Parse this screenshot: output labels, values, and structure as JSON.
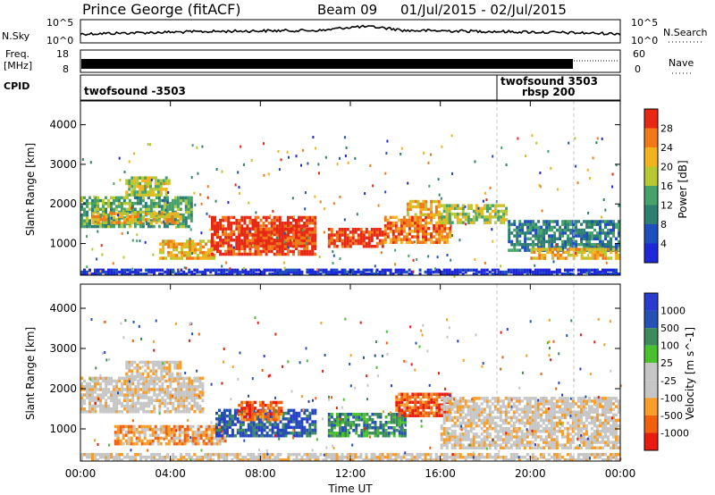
{
  "header": {
    "title": "Prince George (fitACF)",
    "beam": "Beam 09",
    "date_range": "01/Jul/2015 - 02/Jul/2015"
  },
  "left_labels": {
    "nsky": "N.Sky",
    "nsky_top": "10^5",
    "nsky_bottom": "10^0",
    "freq_line1": "Freq.",
    "freq_line2": "[MHz]",
    "freq_top": "18",
    "freq_bottom": "8",
    "cpid": "CPID"
  },
  "right_labels": {
    "nsearch_top": "10^5",
    "nsearch_bottom": "10^0",
    "nsearch": "N.Search",
    "nave_top": "60",
    "nave_bottom": "0",
    "nave": "Nave"
  },
  "cpid_labels": [
    "twofsound -3503",
    "twofsound 3503",
    "rbsp 200"
  ],
  "colors": {
    "power": [
      "#1e28d8",
      "#1f4fbf",
      "#2e7f72",
      "#47a26a",
      "#b6c832",
      "#f3b31f",
      "#f07a18",
      "#e62814"
    ],
    "velocity": [
      "#e91c12",
      "#f0600e",
      "#f79d2a",
      "#c6c6c6",
      "#c6c6c6",
      "#4bc02e",
      "#3d8a5c",
      "#2451b3",
      "#2a3cd0"
    ],
    "axis": "#000000",
    "dashed": "#c8c8c8"
  },
  "chart_data": [
    {
      "type": "line",
      "title": "N.Sky / N.Search",
      "x": [
        "00:00",
        "04:00",
        "08:00",
        "12:00",
        "16:00",
        "20:00",
        "00:00"
      ],
      "series": [
        {
          "name": "N.Sky",
          "values": [
            0.55,
            0.6,
            0.58,
            0.72,
            0.55,
            0.5,
            0.6
          ]
        }
      ]
    },
    {
      "type": "bar",
      "title": "Freq. / Nave",
      "x": [
        "00:00",
        "22:00"
      ],
      "series": [
        {
          "name": "Freq.",
          "values": [
            18,
            8
          ]
        }
      ]
    },
    {
      "type": "heatmap",
      "panel": "power",
      "ylabel": "Slant Range [km]",
      "yticks": [
        "1000",
        "2000",
        "3000",
        "4000"
      ],
      "ylim": [
        200,
        4600
      ],
      "xticks": [
        "00:00",
        "04:00",
        "08:00",
        "12:00",
        "16:00",
        "20:00",
        "00:00"
      ],
      "colorbar_label": "Power [dB]",
      "colorbar_ticks": [
        "4",
        "8",
        "12",
        "16",
        "20",
        "24",
        "28"
      ],
      "bands": [
        {
          "t0": 0.0,
          "t1": 5.0,
          "r0": 1400,
          "r1": 2200,
          "level": 3
        },
        {
          "t0": 0.5,
          "t1": 4.5,
          "r0": 1500,
          "r1": 1800,
          "level": 5
        },
        {
          "t0": 2.0,
          "t1": 4.0,
          "r0": 2200,
          "r1": 2700,
          "level": 4
        },
        {
          "t0": 3.5,
          "t1": 6.0,
          "r0": 600,
          "r1": 1100,
          "level": 5
        },
        {
          "t0": 5.8,
          "t1": 10.5,
          "r0": 700,
          "r1": 1700,
          "level": 7
        },
        {
          "t0": 7.0,
          "t1": 10.5,
          "r0": 900,
          "r1": 1400,
          "level": 7
        },
        {
          "t0": 11.0,
          "t1": 13.5,
          "r0": 900,
          "r1": 1400,
          "level": 7
        },
        {
          "t0": 13.5,
          "t1": 16.5,
          "r0": 1000,
          "r1": 1700,
          "level": 6
        },
        {
          "t0": 14.5,
          "t1": 16.0,
          "r0": 1700,
          "r1": 2100,
          "level": 5
        },
        {
          "t0": 16.0,
          "t1": 19.0,
          "r0": 1500,
          "r1": 2000,
          "level": 4
        },
        {
          "t0": 19.0,
          "t1": 24.0,
          "r0": 800,
          "r1": 1600,
          "level": 2
        },
        {
          "t0": 20.0,
          "t1": 24.0,
          "r0": 600,
          "r1": 900,
          "level": 5
        },
        {
          "t0": 0.0,
          "t1": 24.0,
          "r0": 200,
          "r1": 350,
          "level": 0
        }
      ]
    },
    {
      "type": "heatmap",
      "panel": "velocity",
      "ylabel": "Slant Range [km]",
      "xlabel": "Time UT",
      "yticks": [
        "1000",
        "2000",
        "3000",
        "4000"
      ],
      "ylim": [
        200,
        4600
      ],
      "xticks": [
        "00:00",
        "04:00",
        "08:00",
        "12:00",
        "16:00",
        "20:00",
        "00:00"
      ],
      "colorbar_label": "Velocity [m s^-1]",
      "colorbar_ticks": [
        "1000",
        "500",
        "100",
        "25",
        "-25",
        "-100",
        "-500",
        "-1000"
      ],
      "bands": [
        {
          "t0": 0.0,
          "t1": 5.5,
          "r0": 1400,
          "r1": 2300,
          "level": 3
        },
        {
          "t0": 2.0,
          "t1": 4.5,
          "r0": 2200,
          "r1": 2700,
          "level": 3
        },
        {
          "t0": 1.5,
          "t1": 6.5,
          "r0": 600,
          "r1": 1100,
          "level": 2
        },
        {
          "t0": 6.0,
          "t1": 10.5,
          "r0": 800,
          "r1": 1500,
          "level": 7
        },
        {
          "t0": 7.0,
          "t1": 9.0,
          "r0": 1200,
          "r1": 1700,
          "level": 1
        },
        {
          "t0": 11.0,
          "t1": 14.5,
          "r0": 800,
          "r1": 1400,
          "level": 6
        },
        {
          "t0": 14.0,
          "t1": 16.5,
          "r0": 1300,
          "r1": 1900,
          "level": 1
        },
        {
          "t0": 16.0,
          "t1": 24.0,
          "r0": 500,
          "r1": 1800,
          "level": 3
        },
        {
          "t0": 0.0,
          "t1": 24.0,
          "r0": 200,
          "r1": 400,
          "level": 3
        }
      ]
    }
  ]
}
